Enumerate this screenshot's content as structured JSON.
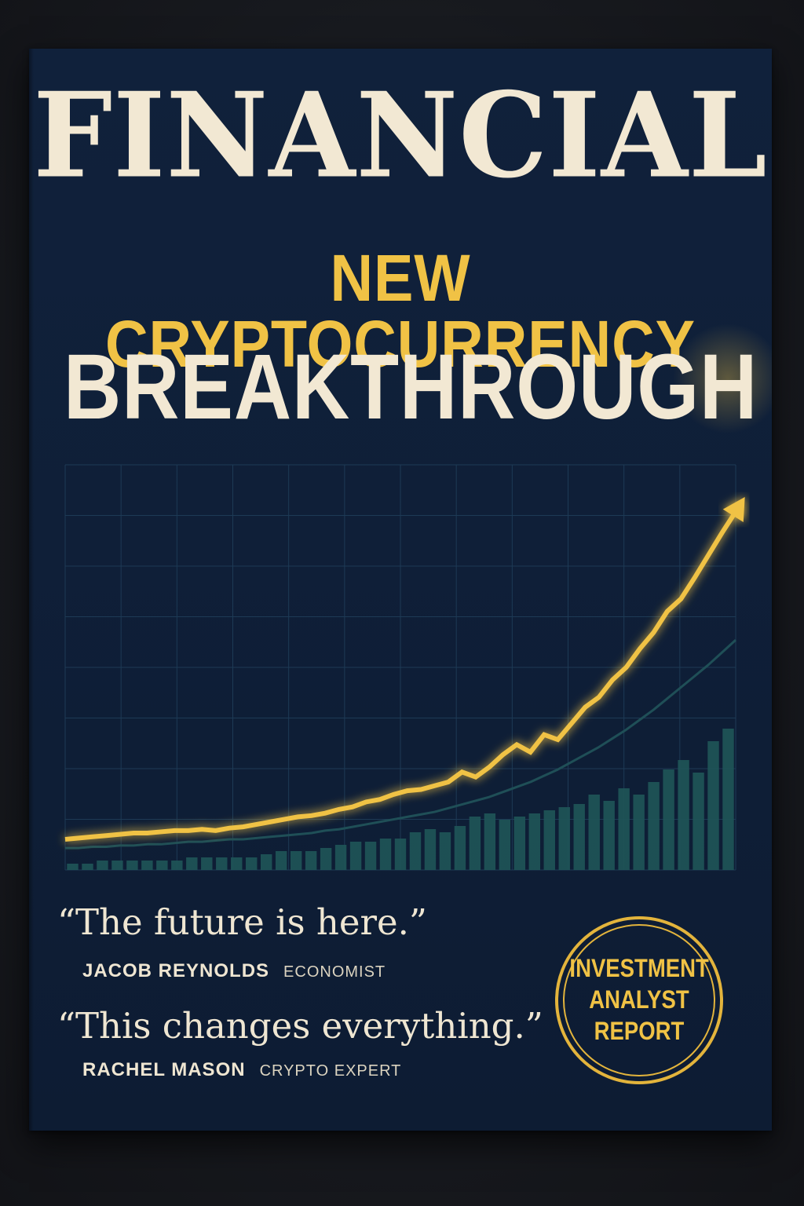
{
  "cover": {
    "masthead": "FINANCIAL",
    "headline_line1": "NEW CRYPTOCURRENCY",
    "headline_line2": "BREAKTHROUGH",
    "quotes": [
      {
        "text": "“The future is here.”",
        "name": "JACOB REYNOLDS",
        "role": "ECONOMIST"
      },
      {
        "text": "“This changes everything.”",
        "name": "RACHEL MASON",
        "role": "CRYPTO EXPERT"
      }
    ],
    "seal": {
      "line1": "INVESTMENT",
      "line2": "ANALYST",
      "line3": "REPORT"
    }
  },
  "colors": {
    "cover_background": "#0f1f38",
    "accent_gold": "#f0c245",
    "cream_text": "#f2e8d3",
    "secondary_teal": "#1f5558",
    "grid": "#1d3a55"
  },
  "chart_data": {
    "type": "line",
    "title": "",
    "xlabel": "",
    "ylabel": "",
    "grid": true,
    "series": [
      {
        "values": [
          12,
          13,
          14,
          15,
          16,
          17,
          17,
          18,
          19,
          19,
          20,
          19,
          21,
          22,
          24,
          26,
          28,
          30,
          31,
          33,
          36,
          38,
          42,
          44,
          48,
          51,
          52,
          55,
          58,
          66,
          62,
          70,
          80,
          88,
          82,
          96,
          92,
          105,
          118,
          126,
          140,
          150,
          165,
          178,
          195,
          205,
          222,
          240,
          258,
          275
        ]
      },
      {
        "values": [
          5,
          5,
          6,
          6,
          7,
          7,
          8,
          8,
          9,
          10,
          10,
          11,
          12,
          12,
          13,
          14,
          15,
          16,
          17,
          19,
          20,
          22,
          24,
          26,
          28,
          30,
          32,
          34,
          37,
          40,
          43,
          46,
          50,
          54,
          58,
          63,
          68,
          74,
          80,
          86,
          93,
          100,
          108,
          116,
          125,
          134,
          143,
          152,
          162,
          172
        ]
      }
    ],
    "bars": [
      2,
      2,
      3,
      3,
      3,
      3,
      3,
      3,
      4,
      4,
      4,
      4,
      4,
      5,
      6,
      6,
      6,
      7,
      8,
      9,
      9,
      10,
      10,
      12,
      13,
      12,
      14,
      17,
      18,
      16,
      17,
      18,
      19,
      20,
      21,
      24,
      22,
      26,
      24,
      28,
      32,
      35,
      31,
      41,
      45
    ]
  }
}
